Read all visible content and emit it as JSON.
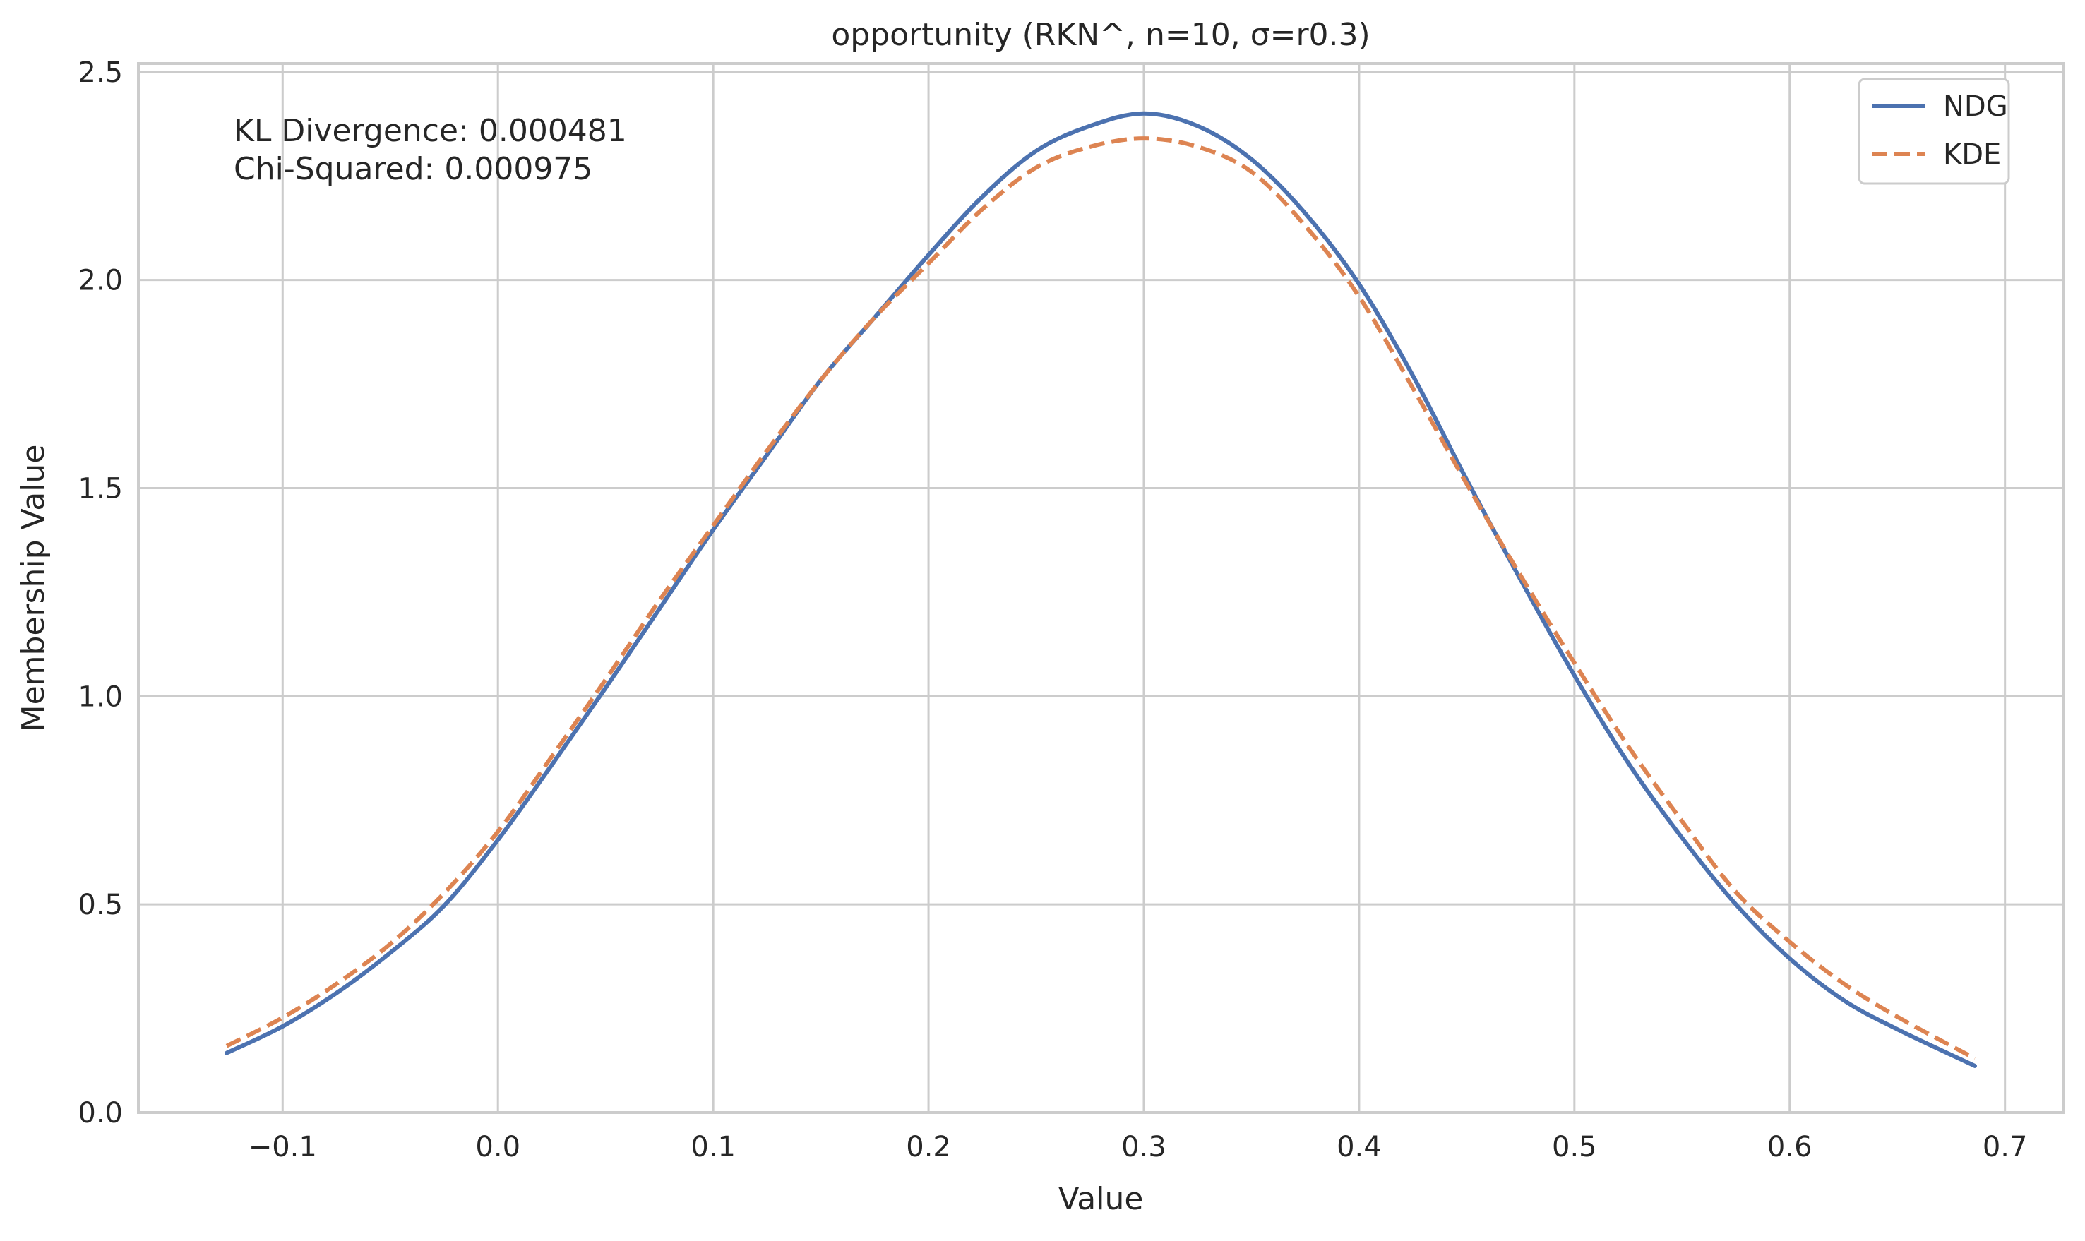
{
  "chart_data": {
    "type": "line",
    "title": "opportunity (RKN^, n=10, σ=r0.3)",
    "xlabel": "Value",
    "ylabel": "Membership Value",
    "xlim": [
      -0.167,
      0.727
    ],
    "ylim": [
      0,
      2.52
    ],
    "x_ticks": [
      -0.1,
      0.0,
      0.1,
      0.2,
      0.3,
      0.4,
      0.5,
      0.6,
      0.7
    ],
    "x_tick_labels": [
      "−0.1",
      "0.0",
      "0.1",
      "0.2",
      "0.3",
      "0.4",
      "0.5",
      "0.6",
      "0.7"
    ],
    "y_ticks": [
      0.0,
      0.5,
      1.0,
      1.5,
      2.0,
      2.5
    ],
    "y_tick_labels": [
      "0.0",
      "0.5",
      "1.0",
      "1.5",
      "2.0",
      "2.5"
    ],
    "grid": true,
    "legend_position": "top-right",
    "series": [
      {
        "name": "NDG",
        "color": "#4c72b0",
        "style": "solid",
        "x": [
          -0.126,
          -0.1,
          -0.075,
          -0.05,
          -0.025,
          0.0,
          0.025,
          0.05,
          0.075,
          0.1,
          0.125,
          0.15,
          0.175,
          0.2,
          0.225,
          0.25,
          0.275,
          0.3,
          0.325,
          0.35,
          0.375,
          0.4,
          0.425,
          0.45,
          0.475,
          0.5,
          0.525,
          0.55,
          0.575,
          0.6,
          0.625,
          0.65,
          0.686
        ],
        "y": [
          0.143,
          0.207,
          0.287,
          0.384,
          0.497,
          0.655,
          0.835,
          1.02,
          1.21,
          1.4,
          1.58,
          1.76,
          1.91,
          2.06,
          2.2,
          2.31,
          2.37,
          2.4,
          2.37,
          2.29,
          2.16,
          1.99,
          1.77,
          1.52,
          1.28,
          1.05,
          0.84,
          0.66,
          0.5,
          0.37,
          0.27,
          0.2,
          0.112
        ]
      },
      {
        "name": "KDE",
        "color": "#dd8452",
        "style": "dashed",
        "x": [
          -0.126,
          -0.1,
          -0.075,
          -0.05,
          -0.025,
          0.0,
          0.025,
          0.05,
          0.075,
          0.1,
          0.125,
          0.15,
          0.175,
          0.2,
          0.225,
          0.25,
          0.275,
          0.3,
          0.325,
          0.35,
          0.375,
          0.4,
          0.425,
          0.45,
          0.475,
          0.5,
          0.525,
          0.55,
          0.575,
          0.6,
          0.625,
          0.65,
          0.686
        ],
        "y": [
          0.16,
          0.228,
          0.309,
          0.405,
          0.527,
          0.675,
          0.855,
          1.04,
          1.23,
          1.41,
          1.59,
          1.76,
          1.91,
          2.04,
          2.17,
          2.27,
          2.32,
          2.34,
          2.32,
          2.26,
          2.13,
          1.96,
          1.74,
          1.51,
          1.29,
          1.08,
          0.88,
          0.7,
          0.53,
          0.41,
          0.31,
          0.23,
          0.13
        ]
      }
    ],
    "annotation_lines": [
      "KL Divergence: 0.000481",
      "Chi-Squared: 0.000975"
    ]
  }
}
